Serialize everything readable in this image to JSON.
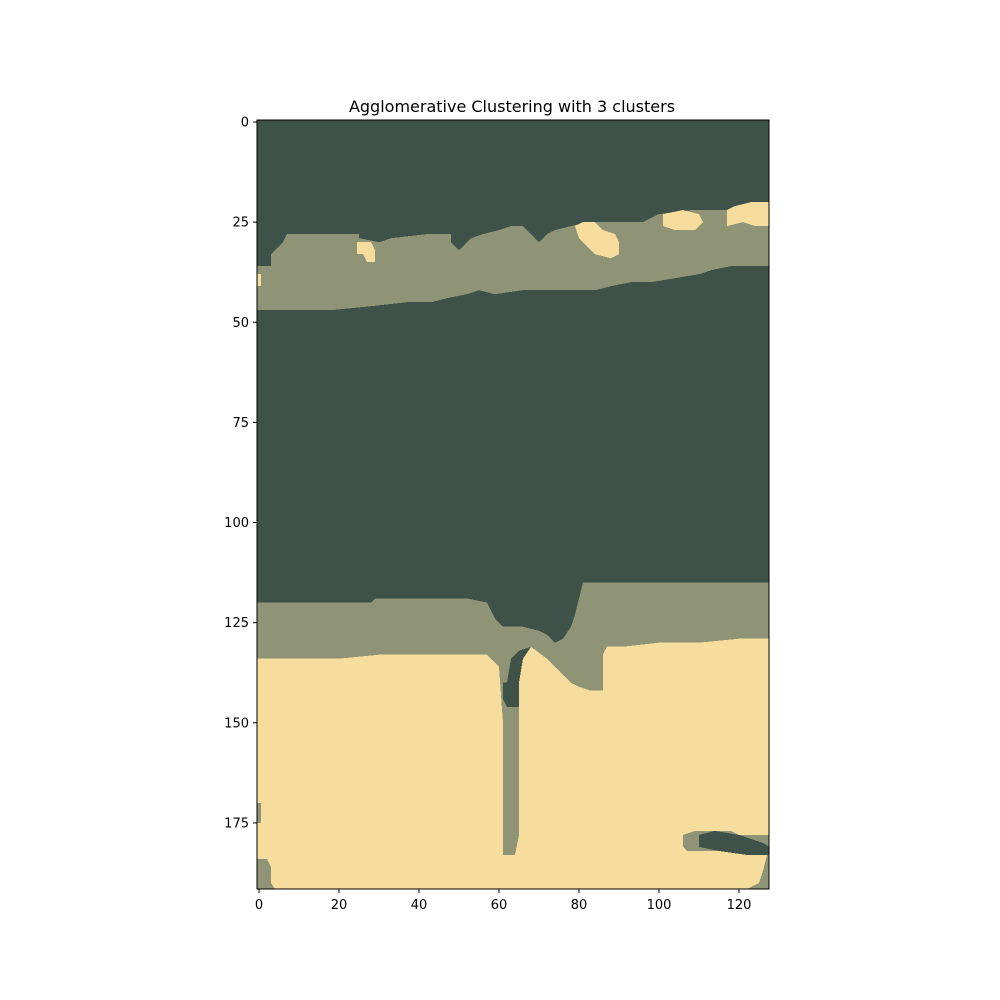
{
  "chart_data": {
    "type": "heatmap",
    "title": "Agglomerative Clustering with 3 clusters",
    "xlabel": "",
    "ylabel": "",
    "x_ticks": [
      0,
      20,
      40,
      60,
      80,
      100,
      120
    ],
    "y_ticks": [
      0,
      25,
      50,
      75,
      100,
      125,
      150,
      175
    ],
    "xlim": [
      -0.5,
      127.5
    ],
    "ylim": [
      191.5,
      -0.5
    ],
    "grid": false,
    "cluster_colors": [
      "#3f5249",
      "#909477",
      "#f6dc9d"
    ],
    "regions": [
      {
        "cluster": 1,
        "points": [
          [
            -0.5,
            40
          ],
          [
            -0.5,
            36
          ],
          [
            3,
            36
          ],
          [
            3,
            33
          ],
          [
            6,
            30
          ],
          [
            7,
            28
          ],
          [
            25,
            28
          ],
          [
            25,
            29
          ],
          [
            30,
            30
          ],
          [
            33,
            29
          ],
          [
            42,
            28
          ],
          [
            48,
            28
          ],
          [
            48,
            30
          ],
          [
            50,
            32
          ],
          [
            51,
            31
          ],
          [
            53,
            29
          ],
          [
            56,
            28
          ],
          [
            60,
            27
          ],
          [
            63,
            26
          ],
          [
            66,
            26
          ],
          [
            68,
            28
          ],
          [
            70,
            30
          ],
          [
            72,
            28
          ],
          [
            74,
            27
          ],
          [
            78,
            26
          ],
          [
            82,
            25
          ],
          [
            89,
            25
          ],
          [
            96,
            25
          ],
          [
            100,
            23
          ],
          [
            108,
            22
          ],
          [
            112,
            22
          ],
          [
            117,
            22
          ],
          [
            119,
            21
          ],
          [
            124,
            20
          ],
          [
            127.5,
            20
          ],
          [
            127.5,
            36
          ],
          [
            124,
            36
          ],
          [
            118,
            36
          ],
          [
            113,
            37
          ],
          [
            110,
            38
          ],
          [
            104,
            39
          ],
          [
            98,
            40
          ],
          [
            93,
            40
          ],
          [
            88,
            41
          ],
          [
            84,
            42
          ],
          [
            79,
            42
          ],
          [
            74,
            42
          ],
          [
            69,
            42
          ],
          [
            66,
            42
          ],
          [
            59,
            43
          ],
          [
            55,
            42
          ],
          [
            52,
            43
          ],
          [
            47,
            44
          ],
          [
            43,
            45
          ],
          [
            37,
            45
          ],
          [
            28,
            46
          ],
          [
            18,
            47
          ],
          [
            8,
            47
          ],
          [
            3,
            47
          ],
          [
            -0.5,
            47
          ]
        ]
      },
      {
        "cluster": 1,
        "points": [
          [
            -0.5,
            120
          ],
          [
            3,
            120
          ],
          [
            4,
            120
          ],
          [
            10,
            120
          ],
          [
            18,
            120
          ],
          [
            19,
            120
          ],
          [
            24,
            120
          ],
          [
            28,
            120
          ],
          [
            29,
            119
          ],
          [
            38,
            119
          ],
          [
            42,
            119
          ],
          [
            44,
            119
          ],
          [
            47,
            119
          ],
          [
            52,
            119
          ],
          [
            57,
            120
          ],
          [
            58,
            122
          ],
          [
            59,
            124
          ],
          [
            61,
            126
          ],
          [
            64,
            126
          ],
          [
            66,
            126
          ],
          [
            70,
            127
          ],
          [
            72,
            128
          ],
          [
            74,
            130
          ],
          [
            76,
            129
          ],
          [
            78,
            126
          ],
          [
            79,
            123
          ],
          [
            80,
            119
          ],
          [
            81,
            115
          ],
          [
            127.5,
            115
          ],
          [
            127.5,
            129
          ],
          [
            120,
            129
          ],
          [
            110,
            130
          ],
          [
            100,
            130
          ],
          [
            91,
            131
          ],
          [
            87,
            131
          ],
          [
            86,
            133
          ],
          [
            86,
            142
          ],
          [
            83,
            142
          ],
          [
            80,
            141
          ],
          [
            78,
            140
          ],
          [
            75,
            137
          ],
          [
            72,
            134
          ],
          [
            68,
            131
          ],
          [
            65,
            132
          ],
          [
            63,
            134
          ],
          [
            62,
            140
          ],
          [
            61,
            144
          ],
          [
            62,
            146
          ],
          [
            65,
            146
          ],
          [
            65,
            178
          ],
          [
            64,
            183
          ],
          [
            61,
            183
          ],
          [
            61,
            177
          ],
          [
            61,
            160
          ],
          [
            61,
            150
          ],
          [
            60,
            136
          ],
          [
            57,
            133
          ],
          [
            50,
            133
          ],
          [
            40,
            133
          ],
          [
            30,
            133
          ],
          [
            20,
            134
          ],
          [
            10,
            134
          ],
          [
            -0.5,
            134
          ]
        ]
      },
      {
        "cluster": 1,
        "points": [
          [
            -0.5,
            170
          ],
          [
            0.5,
            170
          ],
          [
            0.5,
            175
          ],
          [
            -0.5,
            175
          ]
        ]
      },
      {
        "cluster": 1,
        "points": [
          [
            -0.5,
            184
          ],
          [
            2,
            184
          ],
          [
            3,
            186
          ],
          [
            3,
            190
          ],
          [
            4,
            191.5
          ],
          [
            -0.5,
            191.5
          ]
        ]
      },
      {
        "cluster": 1,
        "points": [
          [
            106,
            178
          ],
          [
            109,
            177
          ],
          [
            118,
            177
          ],
          [
            120,
            178
          ],
          [
            124,
            178
          ],
          [
            127.5,
            178
          ],
          [
            127.5,
            191.5
          ],
          [
            122,
            191.5
          ],
          [
            125,
            190
          ],
          [
            126,
            187
          ],
          [
            127,
            183
          ],
          [
            124,
            182
          ],
          [
            118,
            182
          ],
          [
            114,
            182
          ],
          [
            111,
            182
          ],
          [
            107,
            182
          ],
          [
            106,
            181
          ]
        ]
      },
      {
        "cluster": 2,
        "points": [
          [
            -0.5,
            134
          ],
          [
            10,
            134
          ],
          [
            20,
            134
          ],
          [
            30,
            133
          ],
          [
            40,
            133
          ],
          [
            50,
            133
          ],
          [
            57,
            133
          ],
          [
            60,
            136
          ],
          [
            61,
            150
          ],
          [
            61,
            160
          ],
          [
            61,
            177
          ],
          [
            61,
            183
          ],
          [
            64,
            183
          ],
          [
            65,
            178
          ],
          [
            65,
            146
          ],
          [
            65,
            140
          ],
          [
            66,
            134
          ],
          [
            68,
            131
          ],
          [
            72,
            134
          ],
          [
            75,
            137
          ],
          [
            78,
            140
          ],
          [
            80,
            141
          ],
          [
            83,
            142
          ],
          [
            86,
            142
          ],
          [
            86,
            133
          ],
          [
            87,
            131
          ],
          [
            91,
            131
          ],
          [
            100,
            130
          ],
          [
            110,
            130
          ],
          [
            120,
            129
          ],
          [
            127.5,
            129
          ],
          [
            127.5,
            178
          ],
          [
            124,
            178
          ],
          [
            120,
            178
          ],
          [
            118,
            177
          ],
          [
            109,
            177
          ],
          [
            106,
            178
          ],
          [
            106,
            181
          ],
          [
            107,
            182
          ],
          [
            111,
            182
          ],
          [
            114,
            182
          ],
          [
            118,
            182
          ],
          [
            124,
            182
          ],
          [
            127,
            183
          ],
          [
            126,
            187
          ],
          [
            125,
            190
          ],
          [
            122,
            191.5
          ],
          [
            4,
            191.5
          ],
          [
            3,
            190
          ],
          [
            3,
            186
          ],
          [
            2,
            184
          ],
          [
            -0.5,
            184
          ],
          [
            -0.5,
            175
          ],
          [
            0.5,
            175
          ],
          [
            0.5,
            170
          ],
          [
            -0.5,
            170
          ]
        ]
      },
      {
        "cluster": 2,
        "points": [
          [
            -0.5,
            38
          ],
          [
            0.5,
            38
          ],
          [
            0.5,
            41
          ],
          [
            -0.5,
            41
          ]
        ]
      },
      {
        "cluster": 2,
        "points": [
          [
            24.5,
            30
          ],
          [
            28,
            30
          ],
          [
            29,
            32
          ],
          [
            29,
            35
          ],
          [
            27,
            35
          ],
          [
            26,
            33
          ],
          [
            24.5,
            33
          ]
        ]
      },
      {
        "cluster": 2,
        "points": [
          [
            79,
            26
          ],
          [
            81,
            25
          ],
          [
            84,
            25
          ],
          [
            86,
            27
          ],
          [
            89,
            28
          ],
          [
            90,
            30
          ],
          [
            90,
            33
          ],
          [
            88,
            34
          ],
          [
            84,
            33
          ],
          [
            82,
            31
          ],
          [
            80,
            29
          ]
        ]
      },
      {
        "cluster": 2,
        "points": [
          [
            101,
            23
          ],
          [
            106,
            22
          ],
          [
            110,
            23
          ],
          [
            111,
            25
          ],
          [
            109,
            27
          ],
          [
            104,
            27
          ],
          [
            101,
            26
          ]
        ]
      },
      {
        "cluster": 2,
        "points": [
          [
            117,
            22
          ],
          [
            119,
            21
          ],
          [
            123,
            20
          ],
          [
            127.5,
            20
          ],
          [
            127.5,
            26
          ],
          [
            124,
            26
          ],
          [
            121,
            25
          ],
          [
            117,
            26
          ]
        ]
      },
      {
        "cluster": 0,
        "points": [
          [
            61,
            140
          ],
          [
            63,
            140
          ],
          [
            64,
            141
          ],
          [
            64,
            145
          ],
          [
            62,
            146
          ],
          [
            61,
            144
          ]
        ]
      },
      {
        "cluster": 0,
        "points": [
          [
            110,
            178
          ],
          [
            114,
            177
          ],
          [
            120,
            178
          ],
          [
            126,
            180
          ],
          [
            127.5,
            181
          ],
          [
            127.5,
            183
          ],
          [
            122,
            183
          ],
          [
            115,
            182
          ],
          [
            110,
            181
          ]
        ]
      }
    ]
  }
}
